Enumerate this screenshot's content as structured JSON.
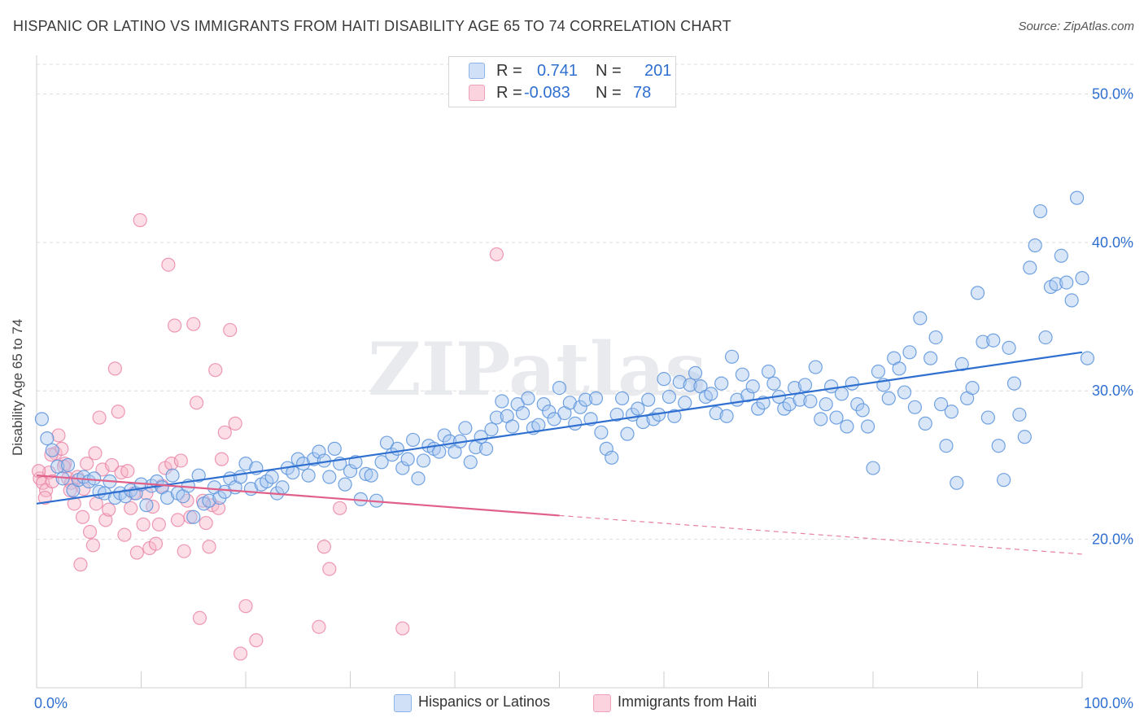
{
  "title": "HISPANIC OR LATINO VS IMMIGRANTS FROM HAITI DISABILITY AGE 65 TO 74 CORRELATION CHART",
  "source": "Source: ZipAtlas.com",
  "watermark": "ZIPatlas",
  "legend_top": {
    "rows": [
      {
        "r_label": "R =",
        "r_value": "0.741",
        "n_label": "N =",
        "n_value": "201",
        "color": "#a9c8f0"
      },
      {
        "r_label": "R =",
        "r_value": "-0.083",
        "n_label": "N =",
        "n_value": "78",
        "color": "#f6b6c8"
      }
    ]
  },
  "legend_bottom": [
    {
      "label": "Hispanics or Latinos",
      "color": "#a9c8f0"
    },
    {
      "label": "Immigrants from Haiti",
      "color": "#f6b6c8"
    }
  ],
  "chart_data": {
    "type": "scatter",
    "title": "HISPANIC OR LATINO VS IMMIGRANTS FROM HAITI DISABILITY AGE 65 TO 74 CORRELATION CHART",
    "xlabel": "",
    "ylabel": "Disability Age 65 to 74",
    "xlim": [
      0,
      100
    ],
    "ylim": [
      10,
      52
    ],
    "x_tick_labels": [
      "0.0%",
      "100.0%"
    ],
    "y_ticks": [
      20,
      30,
      40,
      50
    ],
    "y_tick_labels": [
      "20.0%",
      "30.0%",
      "40.0%",
      "50.0%"
    ],
    "grid": true,
    "colors": {
      "blue": "#5b93dc",
      "blue_fill": "#a9c8f0",
      "pink": "#e87aa0",
      "pink_fill": "#f6b6c8",
      "axis_label": "#2f6fd0"
    },
    "series": [
      {
        "name": "Hispanics or Latinos",
        "color": "#5b93dc",
        "trend": {
          "x": [
            0,
            100
          ],
          "y": [
            22.4,
            32.6
          ],
          "style": "solid",
          "color": "#2f6fd0"
        },
        "points": [
          [
            0.5,
            28.1
          ],
          [
            1,
            26.8
          ],
          [
            1.5,
            26
          ],
          [
            2,
            24.9
          ],
          [
            2.5,
            24.1
          ],
          [
            3,
            25
          ],
          [
            3.5,
            23.3
          ],
          [
            4,
            24
          ],
          [
            4.5,
            24.2
          ],
          [
            5,
            23.9
          ],
          [
            5.5,
            24.1
          ],
          [
            6,
            23.2
          ],
          [
            6.5,
            23.1
          ],
          [
            7,
            23.9
          ],
          [
            7.5,
            22.8
          ],
          [
            8,
            23.1
          ],
          [
            8.5,
            22.9
          ],
          [
            9,
            23.3
          ],
          [
            9.5,
            23.1
          ],
          [
            10,
            23.7
          ],
          [
            10.5,
            22.3
          ],
          [
            11,
            23.6
          ],
          [
            11.5,
            23.9
          ],
          [
            12,
            23.5
          ],
          [
            12.5,
            22.8
          ],
          [
            13,
            24.3
          ],
          [
            13.5,
            23.1
          ],
          [
            14,
            22.9
          ],
          [
            14.5,
            23.6
          ],
          [
            15,
            21.5
          ],
          [
            15.5,
            24.3
          ],
          [
            16,
            22.4
          ],
          [
            16.5,
            22.6
          ],
          [
            17,
            23.5
          ],
          [
            17.5,
            22.8
          ],
          [
            18,
            23.2
          ],
          [
            18.5,
            24.1
          ],
          [
            19,
            23.5
          ],
          [
            19.5,
            24.2
          ],
          [
            20,
            25.1
          ],
          [
            20.5,
            23.4
          ],
          [
            21,
            24.8
          ],
          [
            21.5,
            23.7
          ],
          [
            22,
            23.9
          ],
          [
            22.5,
            24.2
          ],
          [
            23,
            23.1
          ],
          [
            23.5,
            23.5
          ],
          [
            24,
            24.8
          ],
          [
            24.5,
            24.5
          ],
          [
            25,
            25.4
          ],
          [
            25.5,
            25.1
          ],
          [
            26,
            24.3
          ],
          [
            26.5,
            25.4
          ],
          [
            27,
            25.9
          ],
          [
            27.5,
            25.3
          ],
          [
            28,
            24.2
          ],
          [
            28.5,
            26.1
          ],
          [
            29,
            25.1
          ],
          [
            29.5,
            23.7
          ],
          [
            30,
            24.6
          ],
          [
            30.5,
            25.2
          ],
          [
            31,
            22.7
          ],
          [
            31.5,
            24.4
          ],
          [
            32,
            24.3
          ],
          [
            32.5,
            22.6
          ],
          [
            33,
            25.2
          ],
          [
            33.5,
            26.5
          ],
          [
            34,
            25.7
          ],
          [
            34.5,
            26.1
          ],
          [
            35,
            24.8
          ],
          [
            35.5,
            25.4
          ],
          [
            36,
            26.7
          ],
          [
            36.5,
            24.1
          ],
          [
            37,
            25.3
          ],
          [
            37.5,
            26.3
          ],
          [
            38,
            26.1
          ],
          [
            38.5,
            25.9
          ],
          [
            39,
            27
          ],
          [
            39.5,
            26.6
          ],
          [
            40,
            25.9
          ],
          [
            40.5,
            26.6
          ],
          [
            41,
            27.5
          ],
          [
            41.5,
            25.2
          ],
          [
            42,
            26.2
          ],
          [
            42.5,
            26.9
          ],
          [
            43,
            26.1
          ],
          [
            43.5,
            27.4
          ],
          [
            44,
            28.2
          ],
          [
            44.5,
            29.3
          ],
          [
            45,
            28.3
          ],
          [
            45.5,
            27.6
          ],
          [
            46,
            29.1
          ],
          [
            46.5,
            28.5
          ],
          [
            47,
            29.5
          ],
          [
            47.5,
            27.5
          ],
          [
            48,
            27.7
          ],
          [
            48.5,
            29.1
          ],
          [
            49,
            28.6
          ],
          [
            49.5,
            28.1
          ],
          [
            50,
            30.2
          ],
          [
            50.5,
            28.5
          ],
          [
            51,
            29.2
          ],
          [
            51.5,
            27.8
          ],
          [
            52,
            28.9
          ],
          [
            52.5,
            29.4
          ],
          [
            53,
            28.1
          ],
          [
            53.5,
            29.5
          ],
          [
            54,
            27.2
          ],
          [
            54.5,
            26.1
          ],
          [
            55,
            25.5
          ],
          [
            55.5,
            28.4
          ],
          [
            56,
            29.5
          ],
          [
            56.5,
            27.1
          ],
          [
            57,
            28.4
          ],
          [
            57.5,
            28.8
          ],
          [
            58,
            27.9
          ],
          [
            58.5,
            29.4
          ],
          [
            59,
            28.1
          ],
          [
            59.5,
            28.4
          ],
          [
            60,
            30.8
          ],
          [
            60.5,
            29.6
          ],
          [
            61,
            28.3
          ],
          [
            61.5,
            30.6
          ],
          [
            62,
            29.2
          ],
          [
            62.5,
            30.4
          ],
          [
            63,
            31.2
          ],
          [
            63.5,
            30.3
          ],
          [
            64,
            29.6
          ],
          [
            64.5,
            29.8
          ],
          [
            65,
            28.5
          ],
          [
            65.5,
            30.5
          ],
          [
            66,
            28.3
          ],
          [
            66.5,
            32.3
          ],
          [
            67,
            29.4
          ],
          [
            67.5,
            31.1
          ],
          [
            68,
            29.7
          ],
          [
            68.5,
            30.3
          ],
          [
            69,
            28.8
          ],
          [
            69.5,
            29.2
          ],
          [
            70,
            31.3
          ],
          [
            70.5,
            30.5
          ],
          [
            71,
            29.6
          ],
          [
            71.5,
            28.8
          ],
          [
            72,
            29.1
          ],
          [
            72.5,
            30.2
          ],
          [
            73,
            29.4
          ],
          [
            73.5,
            30.4
          ],
          [
            74,
            29.3
          ],
          [
            74.5,
            31.6
          ],
          [
            75,
            28.1
          ],
          [
            75.5,
            29.1
          ],
          [
            76,
            30.3
          ],
          [
            76.5,
            28.2
          ],
          [
            77,
            29.8
          ],
          [
            77.5,
            27.6
          ],
          [
            78,
            30.5
          ],
          [
            78.5,
            29.1
          ],
          [
            79,
            28.7
          ],
          [
            79.5,
            27.6
          ],
          [
            80,
            24.8
          ],
          [
            80.5,
            31.3
          ],
          [
            81,
            30.4
          ],
          [
            81.5,
            29.5
          ],
          [
            82,
            32.2
          ],
          [
            82.5,
            31.5
          ],
          [
            83,
            29.9
          ],
          [
            83.5,
            32.6
          ],
          [
            84,
            28.9
          ],
          [
            84.5,
            34.9
          ],
          [
            85,
            27.8
          ],
          [
            85.5,
            32.2
          ],
          [
            86,
            33.6
          ],
          [
            86.5,
            29.1
          ],
          [
            87,
            26.3
          ],
          [
            87.5,
            28.6
          ],
          [
            88,
            23.8
          ],
          [
            88.5,
            31.8
          ],
          [
            89,
            29.5
          ],
          [
            89.5,
            30.2
          ],
          [
            90,
            36.6
          ],
          [
            90.5,
            33.3
          ],
          [
            91,
            28.2
          ],
          [
            91.5,
            33.4
          ],
          [
            92,
            26.3
          ],
          [
            92.5,
            24
          ],
          [
            93,
            32.9
          ],
          [
            93.5,
            30.5
          ],
          [
            94,
            28.4
          ],
          [
            94.5,
            26.9
          ],
          [
            95,
            38.3
          ],
          [
            95.5,
            39.8
          ],
          [
            96,
            42.1
          ],
          [
            96.5,
            33.6
          ],
          [
            97,
            37
          ],
          [
            97.5,
            37.2
          ],
          [
            98,
            39.1
          ],
          [
            98.5,
            37.3
          ],
          [
            99,
            36.1
          ],
          [
            99.5,
            43
          ],
          [
            100,
            37.6
          ],
          [
            100.5,
            32.2
          ]
        ]
      },
      {
        "name": "Immigrants from Haiti",
        "color": "#e87aa0",
        "trend": {
          "x": [
            0,
            50
          ],
          "y": [
            24.3,
            21.6
          ],
          "style": "solid",
          "color": "#e0608a",
          "dashed_to": {
            "x": 100,
            "y": 19
          }
        },
        "points": [
          [
            0.3,
            24.1
          ],
          [
            0.6,
            23.8
          ],
          [
            0.9,
            23.3
          ],
          [
            1.2,
            24.5
          ],
          [
            1.5,
            23.9
          ],
          [
            1.8,
            25.8
          ],
          [
            2.1,
            27
          ],
          [
            2.4,
            26.1
          ],
          [
            2.7,
            25.1
          ],
          [
            3,
            24.1
          ],
          [
            3.3,
            23.8
          ],
          [
            3.6,
            22.4
          ],
          [
            3.9,
            24.2
          ],
          [
            4.2,
            18.3
          ],
          [
            4.5,
            23.4
          ],
          [
            4.8,
            25.1
          ],
          [
            5.1,
            20.5
          ],
          [
            5.4,
            19.6
          ],
          [
            5.7,
            22.4
          ],
          [
            6,
            28.2
          ],
          [
            6.3,
            24.7
          ],
          [
            6.6,
            21.3
          ],
          [
            6.9,
            22
          ],
          [
            7.2,
            25
          ],
          [
            7.5,
            31.5
          ],
          [
            7.8,
            28.6
          ],
          [
            8.1,
            24.5
          ],
          [
            8.4,
            20.3
          ],
          [
            8.7,
            24.6
          ],
          [
            9,
            22.1
          ],
          [
            9.3,
            23.1
          ],
          [
            9.6,
            19.1
          ],
          [
            9.9,
            41.5
          ],
          [
            10.2,
            21
          ],
          [
            10.5,
            23.1
          ],
          [
            10.8,
            19.4
          ],
          [
            11.1,
            22.2
          ],
          [
            11.4,
            19.7
          ],
          [
            11.7,
            21
          ],
          [
            12,
            23.6
          ],
          [
            12.3,
            24.8
          ],
          [
            12.6,
            38.5
          ],
          [
            12.9,
            25.1
          ],
          [
            13.2,
            34.4
          ],
          [
            13.5,
            21.3
          ],
          [
            13.8,
            25.3
          ],
          [
            14.1,
            19.2
          ],
          [
            14.4,
            22.6
          ],
          [
            14.7,
            21.5
          ],
          [
            15,
            34.5
          ],
          [
            15.3,
            29.2
          ],
          [
            15.6,
            14.7
          ],
          [
            15.9,
            22.6
          ],
          [
            16.2,
            21.1
          ],
          [
            16.5,
            19.5
          ],
          [
            16.8,
            22.3
          ],
          [
            17.1,
            31.4
          ],
          [
            17.4,
            22.1
          ],
          [
            17.7,
            25.4
          ],
          [
            18,
            27.2
          ],
          [
            18.5,
            34.1
          ],
          [
            19,
            27.8
          ],
          [
            19.5,
            12.3
          ],
          [
            20,
            15.5
          ],
          [
            21,
            13.2
          ],
          [
            27,
            14.1
          ],
          [
            27.5,
            19.5
          ],
          [
            28,
            18
          ],
          [
            29,
            22.1
          ],
          [
            35,
            14
          ],
          [
            44,
            39.2
          ],
          [
            0.2,
            24.6
          ],
          [
            0.8,
            22.8
          ],
          [
            1.4,
            25.7
          ],
          [
            2.6,
            24.9
          ],
          [
            3.2,
            23.3
          ],
          [
            4.4,
            21.5
          ],
          [
            5.6,
            25.8
          ]
        ]
      }
    ]
  }
}
